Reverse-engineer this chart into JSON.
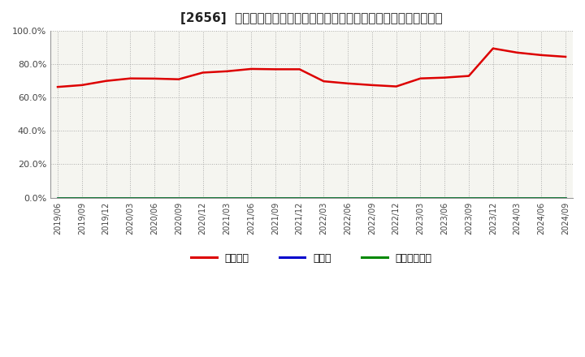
{
  "title": "[2656]  自己資本、のれん、繰延税金資産の総資産に対する比率の推移",
  "series_names": [
    "自己資本",
    "のれん",
    "繰延税金資産"
  ],
  "series_colors": [
    "#dd0000",
    "#0000cc",
    "#008800"
  ],
  "series_values": [
    [
      0.664,
      0.675,
      0.7,
      0.715,
      0.714,
      0.71,
      0.75,
      0.758,
      0.772,
      0.77,
      0.77,
      0.698,
      0.685,
      0.675,
      0.667,
      0.715,
      0.72,
      0.73,
      0.895,
      0.87,
      0.855,
      0.845
    ],
    [
      0.0,
      0.0,
      0.0,
      0.0,
      0.0,
      0.0,
      0.0,
      0.0,
      0.0,
      0.0,
      0.0,
      0.0,
      0.0,
      0.0,
      0.0,
      0.0,
      0.0,
      0.0,
      0.0,
      0.0,
      0.0,
      0.0
    ],
    [
      0.0,
      0.0,
      0.0,
      0.0,
      0.0,
      0.0,
      0.0,
      0.0,
      0.0,
      0.0,
      0.0,
      0.0,
      0.0,
      0.0,
      0.0,
      0.0,
      0.0,
      0.0,
      0.0,
      0.0,
      0.0,
      0.0
    ]
  ],
  "x_tick_labels": [
    "2019/06",
    "2019/09",
    "2019/12",
    "2020/03",
    "2020/06",
    "2020/09",
    "2020/12",
    "2021/03",
    "2021/06",
    "2021/09",
    "2021/12",
    "2022/03",
    "2022/06",
    "2022/09",
    "2022/12",
    "2023/03",
    "2023/06",
    "2023/09",
    "2023/12",
    "2024/03",
    "2024/06",
    "2024/09"
  ],
  "ylim": [
    0.0,
    1.0
  ],
  "yticks": [
    0.0,
    0.2,
    0.4,
    0.6,
    0.8,
    1.0
  ],
  "background_color": "#ffffff",
  "plot_bg_color": "#f5f5f0",
  "grid_color": "#999999",
  "title_fontsize": 11,
  "linewidth": 1.8
}
